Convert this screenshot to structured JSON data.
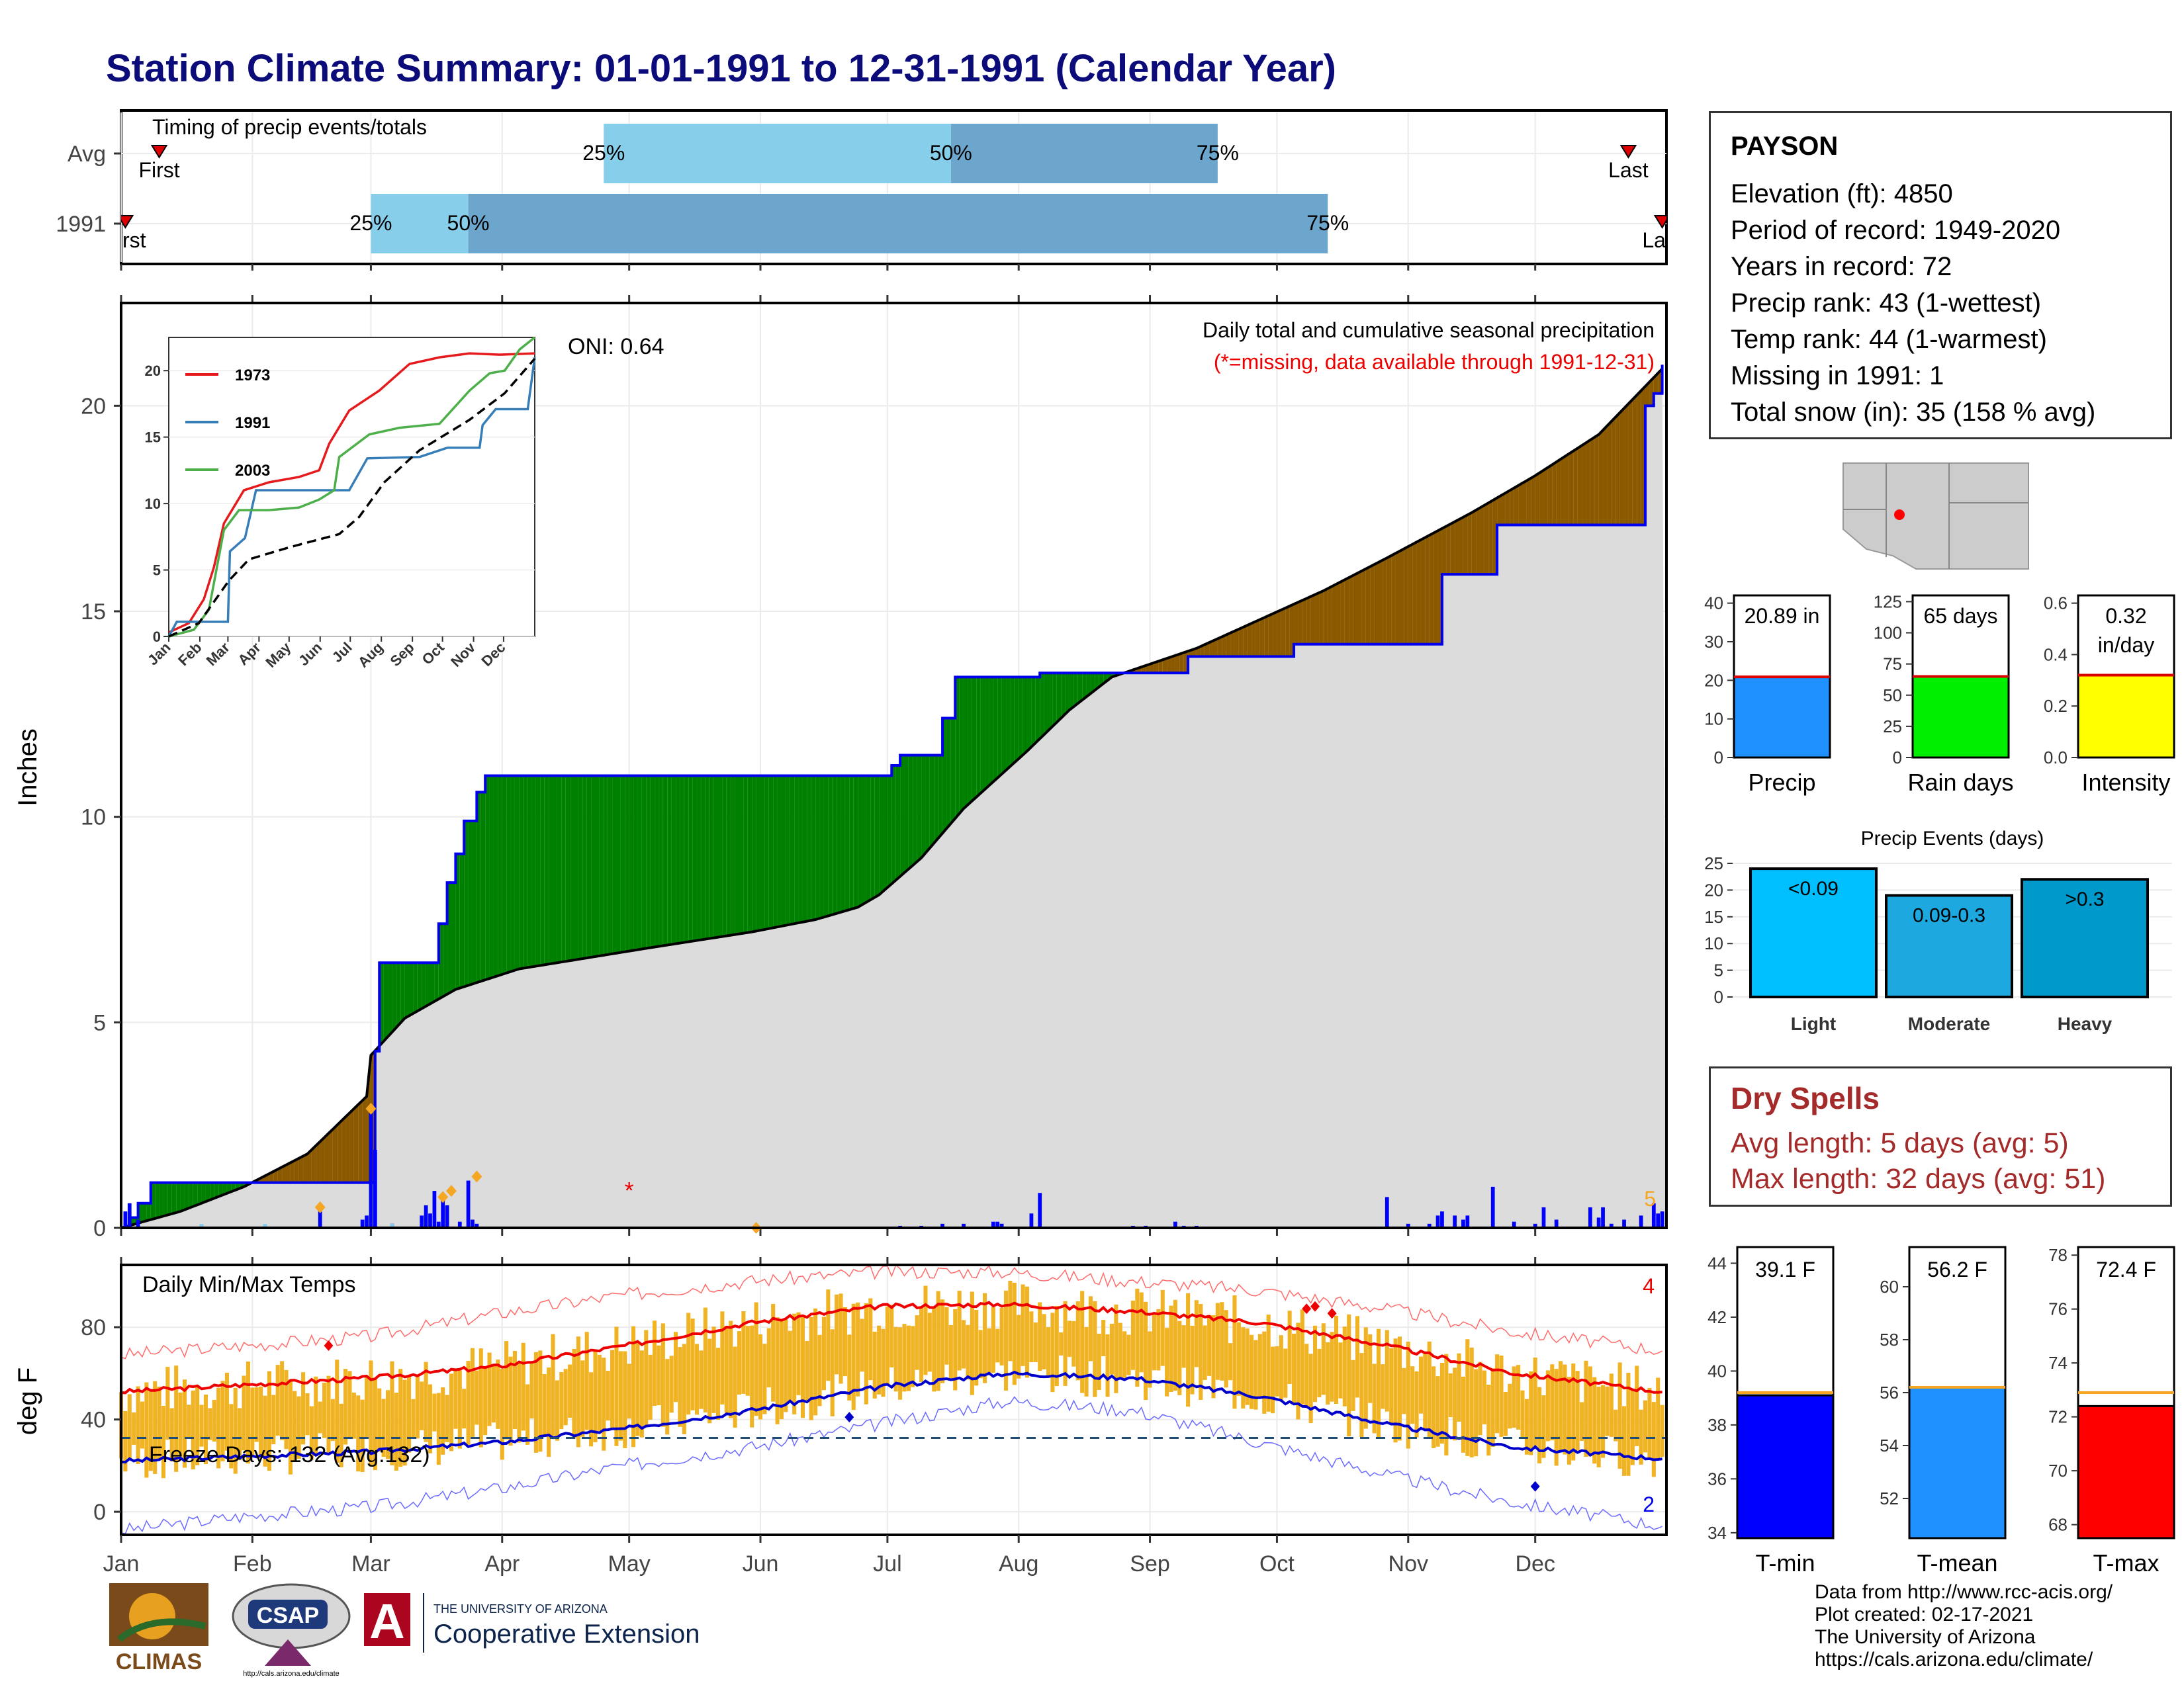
{
  "title": "Station Climate Summary: 01-01-1991 to 12-31-1991 (Calendar Year)",
  "timing_panel": {
    "title": "Timing of precip events/totals",
    "rows": [
      {
        "label": "Avg",
        "first_label": "First",
        "last_label": "Last",
        "first_day": 10,
        "last_day": 357,
        "p25_day": 115,
        "p50_day": 197,
        "p75_day": 260,
        "p25_label": "25%",
        "p50_label": "50%",
        "p75_label": "75%"
      },
      {
        "label": "1991",
        "first_label": "First",
        "last_label": "Last",
        "first_day": 2,
        "last_day": 365,
        "p25_day": 60,
        "p50_day": 83,
        "p75_day": 286,
        "p25_label": "25%",
        "p50_label": "50%",
        "p75_label": "75%"
      }
    ]
  },
  "precip_panel": {
    "title": "Daily total and cumulative seasonal precipitation",
    "missing_note": "(*=missing, data available through 1991-12-31)",
    "oni_label": "ONI: 0.64",
    "ylabel": "Inches",
    "ylim": [
      0,
      22.5
    ],
    "yticks": [
      0,
      5,
      10,
      15,
      20
    ],
    "corner_count": "5",
    "missing_marker": "*",
    "cumulative_1991": [
      [
        1,
        0
      ],
      [
        3,
        0.25
      ],
      [
        5,
        0.6
      ],
      [
        8,
        1.1
      ],
      [
        60,
        1.1
      ],
      [
        61,
        4.3
      ],
      [
        62,
        6.45
      ],
      [
        73,
        6.45
      ],
      [
        76,
        7.4
      ],
      [
        78,
        8.4
      ],
      [
        80,
        9.1
      ],
      [
        82,
        9.9
      ],
      [
        85,
        10.6
      ],
      [
        87,
        11.0
      ],
      [
        180,
        11.0
      ],
      [
        183,
        11.25
      ],
      [
        185,
        11.5
      ],
      [
        195,
        12.4
      ],
      [
        198,
        13.4
      ],
      [
        215,
        13.4
      ],
      [
        218,
        13.5
      ],
      [
        250,
        13.5
      ],
      [
        253,
        13.9
      ],
      [
        275,
        13.9
      ],
      [
        278,
        14.2
      ],
      [
        310,
        14.2
      ],
      [
        313,
        15.9
      ],
      [
        323,
        15.9
      ],
      [
        326,
        17.1
      ],
      [
        358,
        17.1
      ],
      [
        361,
        20.0
      ],
      [
        363,
        20.3
      ],
      [
        365,
        21.0
      ]
    ],
    "cumulative_avg": [
      [
        1,
        0
      ],
      [
        15,
        0.4
      ],
      [
        30,
        1.0
      ],
      [
        45,
        1.8
      ],
      [
        59,
        3.2
      ],
      [
        60,
        4.2
      ],
      [
        68,
        5.1
      ],
      [
        80,
        5.8
      ],
      [
        95,
        6.3
      ],
      [
        125,
        6.8
      ],
      [
        150,
        7.2
      ],
      [
        165,
        7.5
      ],
      [
        175,
        7.8
      ],
      [
        180,
        8.1
      ],
      [
        190,
        9.0
      ],
      [
        200,
        10.2
      ],
      [
        215,
        11.6
      ],
      [
        225,
        12.6
      ],
      [
        235,
        13.4
      ],
      [
        255,
        14.1
      ],
      [
        270,
        14.8
      ],
      [
        285,
        15.5
      ],
      [
        300,
        16.3
      ],
      [
        320,
        17.4
      ],
      [
        335,
        18.3
      ],
      [
        350,
        19.3
      ],
      [
        365,
        20.9
      ]
    ],
    "daily_bars": [
      [
        2,
        0.4
      ],
      [
        3,
        0.6
      ],
      [
        5,
        0.2
      ],
      [
        20,
        0.05
      ],
      [
        35,
        0.05
      ],
      [
        48,
        0.4
      ],
      [
        58,
        0.2
      ],
      [
        59,
        0.3
      ],
      [
        60,
        2.8
      ],
      [
        61,
        1.9
      ],
      [
        65,
        0.1
      ],
      [
        72,
        0.3
      ],
      [
        73,
        0.55
      ],
      [
        74,
        0.35
      ],
      [
        75,
        0.9
      ],
      [
        76,
        0.15
      ],
      [
        77,
        0.7
      ],
      [
        78,
        0.55
      ],
      [
        81,
        0.15
      ],
      [
        83,
        1.15
      ],
      [
        84,
        0.2
      ],
      [
        85,
        0.1
      ],
      [
        185,
        0.05
      ],
      [
        190,
        0.05
      ],
      [
        195,
        0.1
      ],
      [
        200,
        0.1
      ],
      [
        207,
        0.15
      ],
      [
        208,
        0.15
      ],
      [
        209,
        0.1
      ],
      [
        216,
        0.35
      ],
      [
        218,
        0.85
      ],
      [
        240,
        0.05
      ],
      [
        243,
        0.05
      ],
      [
        250,
        0.15
      ],
      [
        252,
        0.05
      ],
      [
        255,
        0.05
      ],
      [
        300,
        0.75
      ],
      [
        305,
        0.1
      ],
      [
        310,
        0.1
      ],
      [
        312,
        0.3
      ],
      [
        313,
        0.4
      ],
      [
        316,
        0.3
      ],
      [
        318,
        0.2
      ],
      [
        319,
        0.3
      ],
      [
        325,
        1.0
      ],
      [
        330,
        0.15
      ],
      [
        335,
        0.1
      ],
      [
        337,
        0.5
      ],
      [
        340,
        0.2
      ],
      [
        348,
        0.5
      ],
      [
        350,
        0.25
      ],
      [
        351,
        0.5
      ],
      [
        353,
        0.1
      ],
      [
        356,
        0.2
      ],
      [
        360,
        0.3
      ],
      [
        363,
        0.6
      ],
      [
        364,
        0.35
      ],
      [
        365,
        0.4
      ]
    ],
    "record_markers": [
      [
        48,
        0.5
      ],
      [
        60,
        2.9
      ],
      [
        77,
        0.75
      ],
      [
        79,
        0.9
      ],
      [
        85,
        1.25
      ],
      [
        151,
        0.0
      ]
    ],
    "missing_days": [
      [
        121,
        1.0
      ]
    ]
  },
  "inset": {
    "yticks": [
      0,
      5,
      10,
      15,
      20
    ],
    "month_labels": [
      "Jan",
      "Feb",
      "Mar",
      "Apr",
      "May",
      "Jun",
      "Jul",
      "Aug",
      "Sep",
      "Oct",
      "Nov",
      "Dec"
    ],
    "series": [
      {
        "name": "1973",
        "color": "#e41a1c",
        "points": [
          [
            0,
            0.3
          ],
          [
            20,
            1.0
          ],
          [
            35,
            2.8
          ],
          [
            45,
            5.2
          ],
          [
            55,
            8.5
          ],
          [
            75,
            11.0
          ],
          [
            100,
            11.6
          ],
          [
            130,
            12.0
          ],
          [
            150,
            12.5
          ],
          [
            160,
            14.5
          ],
          [
            180,
            17.0
          ],
          [
            190,
            17.5
          ],
          [
            210,
            18.5
          ],
          [
            240,
            20.5
          ],
          [
            270,
            21.0
          ],
          [
            300,
            21.3
          ],
          [
            330,
            21.2
          ],
          [
            365,
            21.3
          ]
        ]
      },
      {
        "name": "1991",
        "color": "#377eb8",
        "points": [
          [
            0,
            0
          ],
          [
            8,
            1.1
          ],
          [
            59,
            1.1
          ],
          [
            61,
            6.4
          ],
          [
            76,
            7.4
          ],
          [
            87,
            11.0
          ],
          [
            180,
            11.0
          ],
          [
            198,
            13.4
          ],
          [
            250,
            13.5
          ],
          [
            278,
            14.2
          ],
          [
            310,
            14.2
          ],
          [
            313,
            15.9
          ],
          [
            326,
            17.1
          ],
          [
            358,
            17.1
          ],
          [
            365,
            21.0
          ]
        ]
      },
      {
        "name": "2003",
        "color": "#4daf4a",
        "points": [
          [
            0,
            0
          ],
          [
            25,
            0.5
          ],
          [
            40,
            2.0
          ],
          [
            55,
            8.0
          ],
          [
            70,
            9.5
          ],
          [
            100,
            9.5
          ],
          [
            130,
            9.7
          ],
          [
            150,
            10.3
          ],
          [
            165,
            11.0
          ],
          [
            170,
            13.5
          ],
          [
            200,
            15.2
          ],
          [
            230,
            15.7
          ],
          [
            270,
            16.0
          ],
          [
            300,
            18.5
          ],
          [
            320,
            19.8
          ],
          [
            335,
            20.0
          ],
          [
            350,
            21.6
          ],
          [
            365,
            22.5
          ]
        ]
      },
      {
        "name": "Avg",
        "color": "#000000",
        "points": [
          [
            0,
            0
          ],
          [
            30,
            1.0
          ],
          [
            60,
            4.2
          ],
          [
            80,
            5.8
          ],
          [
            120,
            6.7
          ],
          [
            170,
            7.7
          ],
          [
            190,
            9.0
          ],
          [
            215,
            11.6
          ],
          [
            250,
            14.0
          ],
          [
            300,
            16.3
          ],
          [
            335,
            18.3
          ],
          [
            365,
            20.9
          ]
        ]
      }
    ]
  },
  "temp_panel": {
    "title": "Daily Min/Max Temps",
    "ylabel": "deg F",
    "yticks": [
      0,
      40,
      80
    ],
    "ylim": [
      -10,
      107
    ],
    "freeze_label": "Freeze Days: 132 (Avg:132)",
    "freeze_line": 32,
    "count_max": "4",
    "count_min": "2",
    "avg_max_anchors": [
      [
        1,
        52
      ],
      [
        30,
        55
      ],
      [
        60,
        58
      ],
      [
        90,
        63
      ],
      [
        120,
        72
      ],
      [
        150,
        82
      ],
      [
        180,
        89
      ],
      [
        210,
        90
      ],
      [
        240,
        87
      ],
      [
        270,
        82
      ],
      [
        300,
        72
      ],
      [
        330,
        60
      ],
      [
        365,
        52
      ]
    ],
    "avg_min_anchors": [
      [
        1,
        22
      ],
      [
        30,
        24
      ],
      [
        60,
        26
      ],
      [
        90,
        30
      ],
      [
        120,
        36
      ],
      [
        150,
        44
      ],
      [
        180,
        54
      ],
      [
        210,
        60
      ],
      [
        240,
        58
      ],
      [
        270,
        50
      ],
      [
        300,
        38
      ],
      [
        330,
        28
      ],
      [
        365,
        23
      ]
    ],
    "rec_max_anchors": [
      [
        1,
        68
      ],
      [
        30,
        72
      ],
      [
        60,
        76
      ],
      [
        90,
        86
      ],
      [
        120,
        94
      ],
      [
        150,
        100
      ],
      [
        180,
        104
      ],
      [
        210,
        104
      ],
      [
        240,
        100
      ],
      [
        270,
        96
      ],
      [
        300,
        88
      ],
      [
        330,
        78
      ],
      [
        365,
        70
      ]
    ],
    "rec_min_anchors": [
      [
        1,
        -8
      ],
      [
        30,
        -2
      ],
      [
        60,
        2
      ],
      [
        90,
        10
      ],
      [
        120,
        20
      ],
      [
        150,
        28
      ],
      [
        180,
        38
      ],
      [
        210,
        48
      ],
      [
        240,
        44
      ],
      [
        270,
        30
      ],
      [
        300,
        16
      ],
      [
        330,
        4
      ],
      [
        365,
        -6
      ]
    ]
  },
  "months": [
    "Jan",
    "Feb",
    "Mar",
    "Apr",
    "May",
    "Jun",
    "Jul",
    "Aug",
    "Sep",
    "Oct",
    "Nov",
    "Dec"
  ],
  "station": {
    "name": "PAYSON",
    "lines": [
      "Elevation (ft): 4850",
      "Period of record: 1949-2020",
      "Years in record: 72",
      "Precip rank: 43 (1-wettest)",
      "Temp rank: 44 (1-warmest)",
      "Missing in 1991: 1",
      "Total snow (in): 35 (158 % avg)"
    ]
  },
  "mini_bars": [
    {
      "label": "Precip",
      "value_text": "20.89 in",
      "value": 20.89,
      "avg": 20.9,
      "ymax": 42,
      "yticks": [
        0,
        10,
        20,
        30,
        40
      ],
      "color": "#1e90ff"
    },
    {
      "label": "Rain days",
      "value_text": "65 days",
      "value": 65,
      "avg": 65,
      "ymax": 130,
      "yticks": [
        0,
        25,
        50,
        75,
        100,
        125
      ],
      "color": "#00ee00"
    },
    {
      "label": "Intensity",
      "value_text": "0.32 in/day",
      "value": 0.32,
      "avg": 0.32,
      "ymax": 0.63,
      "yticks": [
        "0.0",
        "0.2",
        "0.4",
        "0.6"
      ],
      "color": "#ffff00"
    }
  ],
  "events": {
    "title": "Precip Events (days)",
    "ymax": 25,
    "yticks": [
      0,
      5,
      10,
      15,
      20,
      25
    ],
    "bars": [
      {
        "label": "Light",
        "value": 24,
        "tag": "<0.09",
        "color": "#00bfff"
      },
      {
        "label": "Moderate",
        "value": 19,
        "tag": "0.09-0.3",
        "color": "#1ea8e0"
      },
      {
        "label": "Heavy",
        "value": 22,
        "tag": ">0.3",
        "color": "#0099cc"
      }
    ]
  },
  "dry_spells": {
    "title": "Dry Spells",
    "lines": [
      "Avg length: 5 days (avg: 5)",
      "Max length: 32 days (avg: 51)"
    ]
  },
  "temp_bars": [
    {
      "label": "T-min",
      "value_text": "39.1 F",
      "value": 39.1,
      "avg": 39.2,
      "ylim": [
        33.8,
        44.6
      ],
      "yticks": [
        34,
        36,
        38,
        40,
        42,
        44
      ],
      "color": "#0000ff"
    },
    {
      "label": "T-mean",
      "value_text": "56.2 F",
      "value": 56.2,
      "avg": 56.2,
      "ylim": [
        50.5,
        61.5
      ],
      "yticks": [
        52,
        54,
        56,
        58,
        60
      ],
      "color": "#1e90ff"
    },
    {
      "label": "T-max",
      "value_text": "72.4 F",
      "value": 72.4,
      "avg": 72.9,
      "ylim": [
        67.5,
        78.3
      ],
      "yticks": [
        68,
        70,
        72,
        74,
        76,
        78
      ],
      "color": "#ff0000"
    }
  ],
  "credits": [
    "Data from http://www.rcc-acis.org/",
    "Plot created: 02-17-2021",
    "The University of Arizona",
    "https://cals.arizona.edu/climate/"
  ],
  "logos": {
    "climas": "CLIMAS",
    "csap": "CSAP",
    "csap_url": "http://cals.arizona.edu/climate",
    "ua_small": "THE UNIVERSITY OF ARIZONA",
    "ua_big": "Cooperative Extension",
    "ua_letter": "A"
  }
}
